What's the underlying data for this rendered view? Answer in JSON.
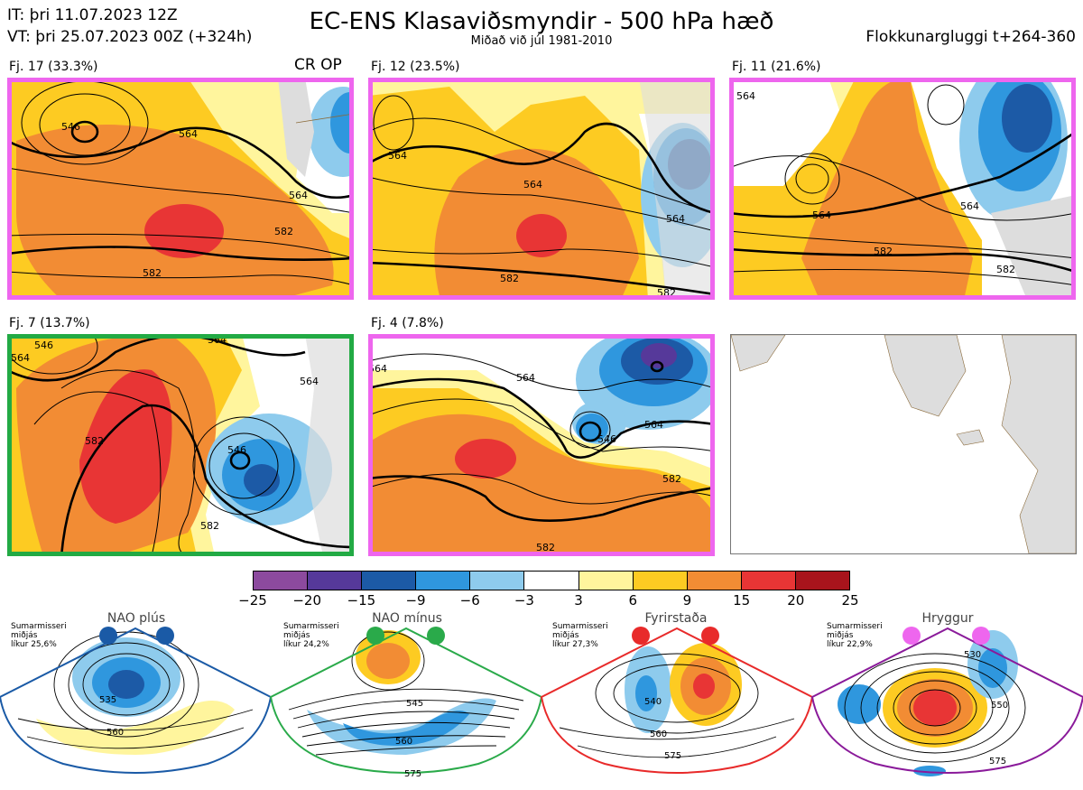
{
  "header": {
    "init_time": "IT: þri 11.07.2023 12Z",
    "valid_time": "VT: þri 25.07.2023 00Z  (+324h)",
    "title": "EC-ENS Klasaviðsmyndir - 500 hPa hæð",
    "subtitle": "Miðað við júl 1981-2010",
    "window": "Flokkunargluggi t+264-360"
  },
  "clusters": [
    {
      "label": "Fj. 17 (33.3%)",
      "tag": "CR OP",
      "frame_color": "#ee66ee",
      "contours": [
        "546",
        "564",
        "564",
        "582",
        "582"
      ]
    },
    {
      "label": "Fj. 12 (23.5%)",
      "frame_color": "#ee66ee",
      "contours": [
        "564",
        "564",
        "564",
        "582",
        "582"
      ]
    },
    {
      "label": "Fj. 11 (21.6%)",
      "frame_color": "#ee66ee",
      "contours": [
        "564",
        "564",
        "564",
        "582",
        "582"
      ]
    },
    {
      "label": "Fj. 7 (13.7%)",
      "frame_color": "#22aa44",
      "contours": [
        "564",
        "546",
        "564",
        "564",
        "546",
        "582",
        "582"
      ]
    },
    {
      "label": "Fj. 4 (7.8%)",
      "frame_color": "#ee66ee",
      "contours": [
        "564",
        "564",
        "546",
        "564",
        "582",
        "582"
      ]
    }
  ],
  "colorbar": {
    "labels": [
      "−25",
      "−20",
      "−15",
      "−9",
      "−6",
      "−3",
      "3",
      "6",
      "9",
      "15",
      "20",
      "25"
    ],
    "colors": [
      "#8c4a9e",
      "#56399a",
      "#1c5aa6",
      "#2f97de",
      "#8ecbed",
      "#ffffff",
      "#fff59d",
      "#fdcb22",
      "#f28c34",
      "#e83535",
      "#a8141c"
    ]
  },
  "regimes": [
    {
      "name": "NAO plús",
      "season": "Sumarmisseri",
      "median": "miðjás",
      "likelihood": "líkur 25,6%",
      "color": "#1a5aa6",
      "contours": [
        "535",
        "560"
      ]
    },
    {
      "name": "NAO mínus",
      "season": "Sumarmisseri",
      "median": "miðjás",
      "likelihood": "líkur 24,2%",
      "color": "#2aaa4a",
      "contours": [
        "545",
        "560",
        "575"
      ]
    },
    {
      "name": "Fyrirstaða",
      "season": "Sumarmisseri",
      "median": "miðjás",
      "likelihood": "líkur 27,3%",
      "color": "#e82a2a",
      "contours": [
        "540",
        "560",
        "575"
      ]
    },
    {
      "name": "Hryggur",
      "season": "Sumarmisseri",
      "median": "miðjás",
      "likelihood": "líkur 22,9%",
      "color": "#ee66ee",
      "contours": [
        "530",
        "550",
        "575"
      ]
    }
  ]
}
